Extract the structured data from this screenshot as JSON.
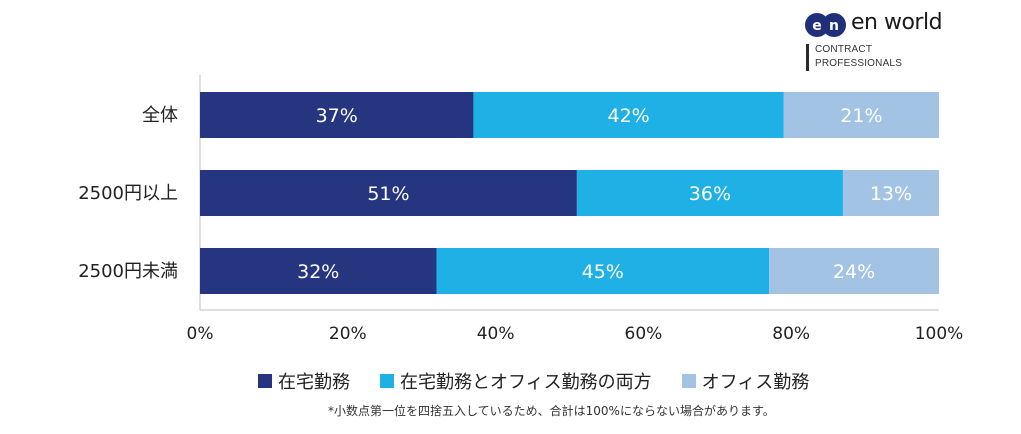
{
  "logo": {
    "name": "en world",
    "line1": "CONTRACT",
    "line2": "PROFESSIONALS",
    "brand_color": "#1f2f7a"
  },
  "chart_data": {
    "type": "bar",
    "orientation": "horizontal",
    "stacked": true,
    "categories": [
      "全体",
      "2500円以上",
      "2500円未満"
    ],
    "series": [
      {
        "name": "在宅勤務",
        "color": "#25357f",
        "values": [
          37,
          51,
          32
        ],
        "labels": [
          "37%",
          "51%",
          "32%"
        ]
      },
      {
        "name": "在宅勤務とオフィス勤務の両方",
        "color": "#1fb0e6",
        "values": [
          42,
          36,
          45
        ],
        "labels": [
          "42%",
          "36%",
          "45%"
        ]
      },
      {
        "name": "オフィス勤務",
        "color": "#a3c3e5",
        "values": [
          21,
          13,
          24
        ],
        "labels": [
          "21%",
          "13%",
          "24%"
        ]
      }
    ],
    "xlim": [
      0,
      100
    ],
    "xticks": [
      "0%",
      "20%",
      "40%",
      "60%",
      "80%",
      "100%"
    ],
    "legend_position": "bottom",
    "grid": false
  },
  "footnote": "*小数点第一位を四捨五入しているため、合計は100%にならない場合があります。"
}
